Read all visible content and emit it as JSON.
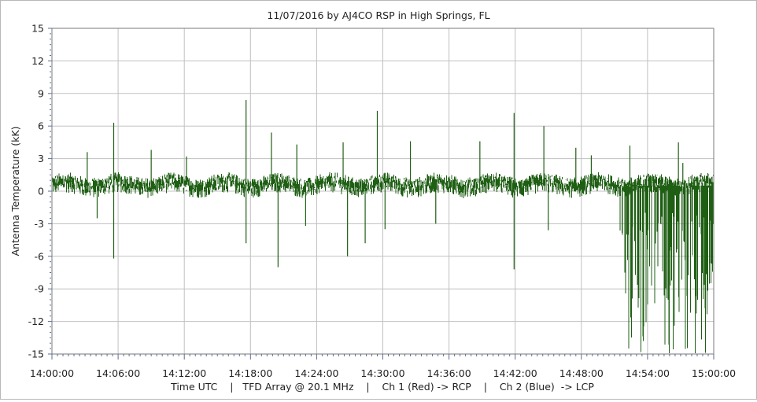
{
  "chart_data": {
    "type": "line",
    "title": "11/07/2016  by  AJ4CO RSP  in  High Springs, FL",
    "ylabel": "Antenna Temperature (kK)",
    "xlabel": "Time UTC    |   TFD Array @ 20.1 MHz    |    Ch 1 (Red) -> RCP    |    Ch 2 (Blue)  -> LCP",
    "xlim_minutes": [
      0,
      60
    ],
    "ylim": [
      -15,
      15
    ],
    "yticks": [
      15,
      12,
      9,
      6,
      3,
      0,
      -3,
      -6,
      -9,
      -12,
      -15
    ],
    "xticks": [
      "14:00:00",
      "14:06:00",
      "14:12:00",
      "14:18:00",
      "14:24:00",
      "14:30:00",
      "14:36:00",
      "14:42:00",
      "14:48:00",
      "14:54:00",
      "15:00:00"
    ],
    "grid": true,
    "series": [
      {
        "name": "",
        "color": "#1f5f14",
        "baseline_range": [
          -0.3,
          1.6
        ],
        "spikes": [
          {
            "t": 3.2,
            "y": 3.6
          },
          {
            "t": 4.1,
            "y": -2.5
          },
          {
            "t": 5.6,
            "y": 6.3
          },
          {
            "t": 5.6,
            "y": -6.2
          },
          {
            "t": 9.0,
            "y": 3.8
          },
          {
            "t": 12.2,
            "y": 3.2
          },
          {
            "t": 17.6,
            "y": 8.4
          },
          {
            "t": 17.6,
            "y": -4.8
          },
          {
            "t": 19.9,
            "y": 5.4
          },
          {
            "t": 20.5,
            "y": -7.0
          },
          {
            "t": 22.2,
            "y": 4.3
          },
          {
            "t": 23.0,
            "y": -3.2
          },
          {
            "t": 26.4,
            "y": 4.5
          },
          {
            "t": 26.8,
            "y": -6.0
          },
          {
            "t": 28.4,
            "y": -4.8
          },
          {
            "t": 29.5,
            "y": 7.4
          },
          {
            "t": 30.2,
            "y": -3.5
          },
          {
            "t": 32.5,
            "y": 4.6
          },
          {
            "t": 34.8,
            "y": -3.0
          },
          {
            "t": 38.8,
            "y": 4.6
          },
          {
            "t": 41.9,
            "y": 7.2
          },
          {
            "t": 41.9,
            "y": -7.2
          },
          {
            "t": 44.6,
            "y": 6.0
          },
          {
            "t": 45.0,
            "y": -3.6
          },
          {
            "t": 47.5,
            "y": 4.0
          },
          {
            "t": 48.9,
            "y": 3.3
          },
          {
            "t": 52.4,
            "y": 4.2
          },
          {
            "t": 56.8,
            "y": 4.5
          },
          {
            "t": 57.2,
            "y": 2.6
          }
        ],
        "burst_region": {
          "t": [
            51.5,
            60
          ],
          "min_y": -15
        }
      }
    ]
  }
}
